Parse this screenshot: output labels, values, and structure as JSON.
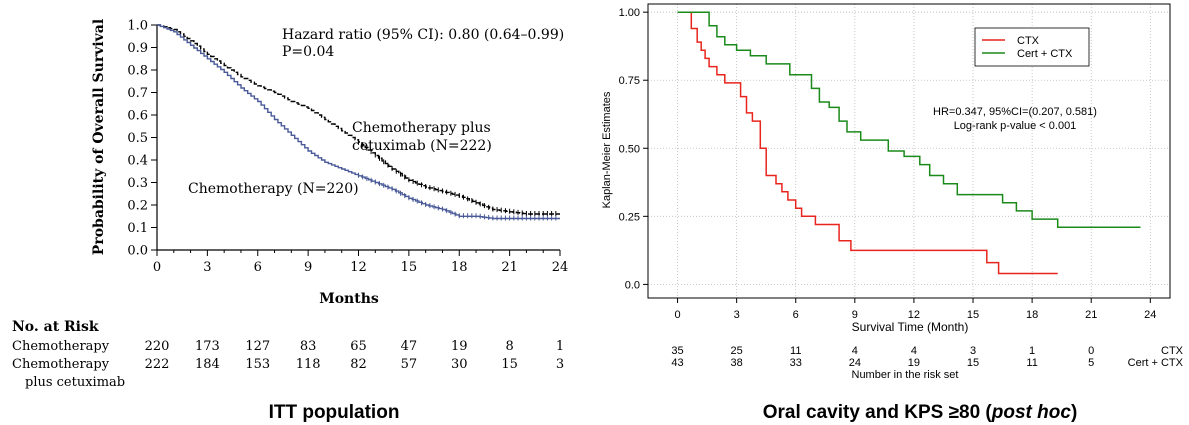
{
  "captions": {
    "left": "ITT population",
    "right_prefix": "Oral cavity and KPS ≥80 (",
    "right_italic": "post hoc",
    "right_suffix": ")"
  },
  "chart_data": [
    {
      "type": "line",
      "subtype": "kaplan-meier",
      "xlabel": "Months",
      "ylabel": "Probability of Overall Survival",
      "xlim": [
        0,
        24
      ],
      "ylim": [
        0,
        1
      ],
      "xticks": [
        0,
        3,
        6,
        9,
        12,
        15,
        18,
        21,
        24
      ],
      "yticks": [
        0.0,
        0.1,
        0.2,
        0.3,
        0.4,
        0.5,
        0.6,
        0.7,
        0.8,
        0.9,
        1.0
      ],
      "ytick_labels": [
        "0.0",
        "0.1",
        "0.2",
        "0.3",
        "0.4",
        "0.5",
        "0.6",
        "0.7",
        "0.8",
        "0.9",
        "1.0"
      ],
      "grid": false,
      "annotation_lines": [
        "Hazard ratio (95% CI): 0.80 (0.64–0.99)",
        "P=0.04"
      ],
      "series": [
        {
          "name": "Chemotherapy plus cetuximab (N=222)",
          "label_lines": [
            "Chemotherapy plus",
            "cetuximab (N=222)"
          ],
          "color": "#000000",
          "dash": true,
          "x": [
            0,
            1,
            2,
            3,
            4,
            5,
            6,
            7,
            8,
            9,
            10,
            11,
            12,
            13,
            14,
            15,
            16,
            17,
            18,
            19,
            20,
            21,
            22,
            23,
            24
          ],
          "y": [
            1.0,
            0.98,
            0.93,
            0.87,
            0.82,
            0.77,
            0.73,
            0.7,
            0.66,
            0.63,
            0.58,
            0.53,
            0.48,
            0.42,
            0.36,
            0.31,
            0.28,
            0.26,
            0.24,
            0.21,
            0.18,
            0.17,
            0.16,
            0.16,
            0.16
          ]
        },
        {
          "name": "Chemotherapy (N=220)",
          "label_lines": [
            "Chemotherapy (N=220)"
          ],
          "color": "#4a5a99",
          "dash": false,
          "x": [
            0,
            1,
            2,
            3,
            4,
            5,
            6,
            7,
            8,
            9,
            10,
            11,
            12,
            13,
            14,
            15,
            16,
            17,
            18,
            19,
            20,
            21,
            22,
            23,
            24
          ],
          "y": [
            1.0,
            0.97,
            0.91,
            0.85,
            0.79,
            0.72,
            0.66,
            0.58,
            0.51,
            0.44,
            0.39,
            0.36,
            0.33,
            0.3,
            0.27,
            0.23,
            0.2,
            0.18,
            0.15,
            0.15,
            0.14,
            0.14,
            0.14,
            0.14,
            0.14
          ]
        }
      ],
      "risk_table": {
        "title": "No. at Risk",
        "rows": [
          {
            "label_lines": [
              "Chemotherapy"
            ],
            "values": [
              "220",
              "173",
              "127",
              "83",
              "65",
              "47",
              "19",
              "8",
              "1"
            ]
          },
          {
            "label_lines": [
              "Chemotherapy",
              "plus cetuximab"
            ],
            "values": [
              "222",
              "184",
              "153",
              "118",
              "82",
              "57",
              "30",
              "15",
              "3"
            ]
          }
        ]
      }
    },
    {
      "type": "line",
      "subtype": "kaplan-meier",
      "xlabel": "Survival Time (Month)",
      "ylabel": "Kaplan-Meier Estimates",
      "xlim": [
        -1.5,
        25
      ],
      "ylim": [
        -0.05,
        1.03
      ],
      "xticks": [
        0,
        3,
        6,
        9,
        12,
        15,
        18,
        21,
        24
      ],
      "yticks": [
        0,
        0.25,
        0.5,
        0.75,
        1.0
      ],
      "ytick_labels": [
        "0.0",
        "0.25",
        "0.50",
        "0.75",
        "1.00"
      ],
      "grid": true,
      "legend": "top-right",
      "annotation_lines": [
        "HR=0.347, 95%CI=(0.207, 0.581)",
        "Log-rank p-value < 0.001"
      ],
      "series": [
        {
          "name": "CTX",
          "color": "#e8251d",
          "x": [
            0,
            0.7,
            0.7,
            1.0,
            1.0,
            1.2,
            1.2,
            1.4,
            1.4,
            1.6,
            1.6,
            2.0,
            2.0,
            2.4,
            2.4,
            3.2,
            3.2,
            3.5,
            3.5,
            3.8,
            3.8,
            4.2,
            4.2,
            4.5,
            4.5,
            5.0,
            5.0,
            5.3,
            5.3,
            5.6,
            5.6,
            6.0,
            6.0,
            6.3,
            6.3,
            7.0,
            7.0,
            8.2,
            8.2,
            8.8,
            8.8,
            15.7,
            15.7,
            16.3,
            16.3,
            19.3
          ],
          "y": [
            1.0,
            1.0,
            0.94,
            0.94,
            0.89,
            0.89,
            0.86,
            0.86,
            0.83,
            0.83,
            0.8,
            0.8,
            0.77,
            0.77,
            0.74,
            0.74,
            0.69,
            0.69,
            0.63,
            0.63,
            0.6,
            0.6,
            0.5,
            0.5,
            0.4,
            0.4,
            0.37,
            0.37,
            0.34,
            0.34,
            0.31,
            0.31,
            0.28,
            0.28,
            0.25,
            0.25,
            0.22,
            0.22,
            0.16,
            0.16,
            0.125,
            0.125,
            0.08,
            0.08,
            0.04,
            0.04
          ]
        },
        {
          "name": "Cert + CTX",
          "color": "#1a8a1a",
          "x": [
            0,
            1.6,
            1.6,
            2.0,
            2.0,
            2.4,
            2.4,
            3.0,
            3.0,
            3.7,
            3.7,
            4.5,
            4.5,
            5.7,
            5.7,
            6.8,
            6.8,
            7.2,
            7.2,
            7.7,
            7.7,
            8.2,
            8.2,
            8.6,
            8.6,
            9.3,
            9.3,
            10.7,
            10.7,
            11.5,
            11.5,
            12.3,
            12.3,
            12.8,
            12.8,
            13.5,
            13.5,
            14.2,
            14.2,
            16.5,
            16.5,
            17.2,
            17.2,
            18.0,
            18.0,
            19.3,
            19.3,
            23.5
          ],
          "y": [
            1.0,
            1.0,
            0.95,
            0.95,
            0.91,
            0.91,
            0.88,
            0.88,
            0.86,
            0.86,
            0.84,
            0.84,
            0.81,
            0.81,
            0.77,
            0.77,
            0.72,
            0.72,
            0.67,
            0.67,
            0.65,
            0.65,
            0.6,
            0.6,
            0.56,
            0.56,
            0.53,
            0.53,
            0.49,
            0.49,
            0.47,
            0.47,
            0.44,
            0.44,
            0.4,
            0.4,
            0.37,
            0.37,
            0.33,
            0.33,
            0.3,
            0.3,
            0.27,
            0.27,
            0.24,
            0.24,
            0.21,
            0.21
          ]
        }
      ],
      "risk_table": {
        "title": "Number in the risk set",
        "rows": [
          {
            "label_lines": [
              "CTX"
            ],
            "values": [
              "35",
              "25",
              "11",
              "4",
              "4",
              "3",
              "1",
              "0"
            ]
          },
          {
            "label_lines": [
              "Cert + CTX"
            ],
            "values": [
              "43",
              "38",
              "33",
              "24",
              "19",
              "15",
              "11",
              "5"
            ]
          }
        ]
      }
    }
  ]
}
